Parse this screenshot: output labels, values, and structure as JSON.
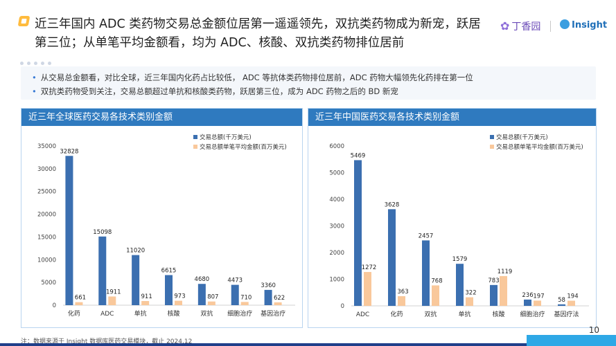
{
  "header": {
    "title": "近三年国内 ADC 类药物交易总金额位居第一遥遥领先，双抗类药物成为新宠，跃居第三位；从单笔平均金额看，均为 ADC、核酸、双抗类药物排位居前",
    "logo_brand": "丁香园",
    "logo_insight": "Insight"
  },
  "bullets": {
    "b1": "从交易总金额看，对比全球，近三年国内化药占比较低， ADC 等抗体类药物排位居前，ADC 药物大幅领先化药排在第一位",
    "b2": "双抗类药物受到关注，交易总额超过单抗和核酸类药物，跃居第三位，成为 ADC 药物之后的 BD 新宠"
  },
  "footer": {
    "note": "注：数据来源于 Insight 数据库医药交易模块，截止 2024.12",
    "page": "10"
  },
  "colors": {
    "series1": "#3b6fb0",
    "series2": "#f9c89b",
    "header": "#2f7abf"
  },
  "chart_data": [
    {
      "type": "bar",
      "title": "近三年全球医药交易各技术类别金额",
      "categories": [
        "化药",
        "ADC",
        "单抗",
        "核酸",
        "双抗",
        "细胞治疗",
        "基因治疗"
      ],
      "series": [
        {
          "name": "交易总额(千万美元)",
          "values": [
            32828,
            15098,
            11020,
            6615,
            4680,
            4473,
            3360
          ]
        },
        {
          "name": "交易总额单笔平均金额(百万美元)",
          "values": [
            661,
            1911,
            911,
            973,
            807,
            710,
            622
          ]
        }
      ],
      "ylim": [
        0,
        35000
      ],
      "yticks": [
        0,
        5000,
        10000,
        15000,
        20000,
        25000,
        30000,
        35000
      ],
      "legend": "top-right"
    },
    {
      "type": "bar",
      "title": "近三年中国医药交易各技术类别金额",
      "categories": [
        "ADC",
        "化药",
        "双抗",
        "单抗",
        "核酸",
        "细胞治疗",
        "基因疗法"
      ],
      "series": [
        {
          "name": "交易总额(千万美元)",
          "values": [
            5469,
            3628,
            2457,
            1579,
            783,
            236,
            58
          ]
        },
        {
          "name": "交易总额单笔平均金额(百万美元)",
          "values": [
            1272,
            363,
            768,
            322,
            1119,
            197,
            194
          ]
        }
      ],
      "ylim": [
        0,
        6000
      ],
      "yticks": [
        0,
        1000,
        2000,
        3000,
        4000,
        5000,
        6000
      ],
      "legend": "top-right"
    }
  ]
}
